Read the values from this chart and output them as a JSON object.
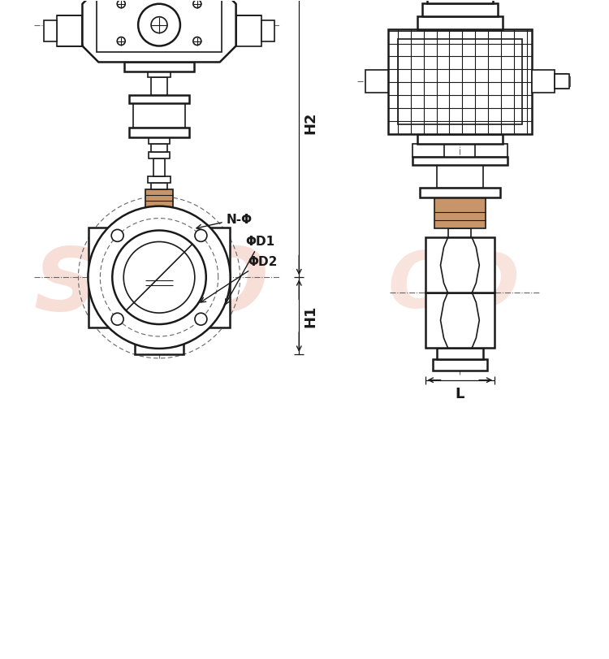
{
  "bg_color": "#ffffff",
  "lc": "#1a1a1a",
  "dc": "#666666",
  "brown": "#c8956a",
  "wm_color": "#f2c4b5",
  "label_H1": "H1",
  "label_H2": "H2",
  "label_L": "L",
  "label_NPhi": "N-Φ",
  "label_PhiD1": "ΦD1",
  "label_PhiD2": "ΦD2",
  "figsize": [
    7.5,
    8.12
  ],
  "dpi": 100
}
